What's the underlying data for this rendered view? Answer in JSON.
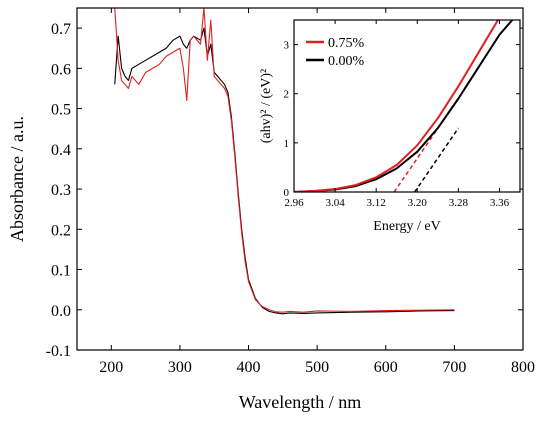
{
  "chart_data": [
    {
      "type": "line",
      "xlabel": "Wavelength / nm",
      "ylabel": "Absorbance / a.u.",
      "xlim": [
        150,
        800
      ],
      "ylim": [
        -0.1,
        0.75
      ],
      "xticks": [
        200,
        300,
        400,
        500,
        600,
        700,
        800
      ],
      "yticks": [
        -0.1,
        0.0,
        0.1,
        0.2,
        0.3,
        0.4,
        0.5,
        0.6,
        0.7
      ],
      "xtick_labels": [
        "200",
        "300",
        "400",
        "500",
        "600",
        "700",
        "800"
      ],
      "ytick_labels": [
        "-0.1",
        "0.0",
        "0.1",
        "0.2",
        "0.3",
        "0.4",
        "0.5",
        "0.6",
        "0.7"
      ],
      "grid": false,
      "series": [
        {
          "name": "0.75%",
          "color": "#e02020",
          "x": [
            205,
            210,
            215,
            220,
            225,
            230,
            240,
            250,
            260,
            270,
            280,
            290,
            300,
            305,
            310,
            315,
            320,
            330,
            335,
            340,
            345,
            350,
            355,
            360,
            365,
            370,
            375,
            380,
            385,
            390,
            395,
            400,
            410,
            420,
            430,
            440,
            450,
            460,
            480,
            500,
            550,
            600,
            650,
            700
          ],
          "y": [
            0.75,
            0.62,
            0.57,
            0.56,
            0.55,
            0.58,
            0.56,
            0.59,
            0.6,
            0.61,
            0.63,
            0.64,
            0.65,
            0.6,
            0.52,
            0.67,
            0.68,
            0.66,
            0.75,
            0.62,
            0.72,
            0.58,
            0.57,
            0.56,
            0.55,
            0.53,
            0.47,
            0.38,
            0.28,
            0.19,
            0.12,
            0.07,
            0.025,
            0.008,
            0.0,
            -0.005,
            -0.006,
            -0.004,
            -0.006,
            -0.003,
            -0.004,
            -0.002,
            -0.001,
            0.0
          ]
        },
        {
          "name": "0.00%",
          "color": "#000000",
          "x": [
            205,
            210,
            215,
            220,
            225,
            230,
            240,
            250,
            260,
            270,
            280,
            290,
            300,
            305,
            310,
            315,
            320,
            330,
            335,
            340,
            345,
            350,
            355,
            360,
            365,
            370,
            375,
            380,
            385,
            390,
            395,
            400,
            410,
            420,
            430,
            440,
            450,
            460,
            480,
            500,
            550,
            600,
            650,
            700
          ],
          "y": [
            0.56,
            0.68,
            0.6,
            0.58,
            0.57,
            0.6,
            0.61,
            0.62,
            0.63,
            0.64,
            0.65,
            0.67,
            0.68,
            0.66,
            0.65,
            0.67,
            0.68,
            0.67,
            0.7,
            0.63,
            0.66,
            0.59,
            0.58,
            0.57,
            0.56,
            0.54,
            0.48,
            0.39,
            0.29,
            0.2,
            0.13,
            0.075,
            0.028,
            0.006,
            -0.004,
            -0.008,
            -0.01,
            -0.008,
            -0.009,
            -0.008,
            -0.006,
            -0.005,
            -0.003,
            -0.002
          ]
        }
      ]
    },
    {
      "type": "line",
      "inset": true,
      "xlabel": "Energy / eV",
      "ylabel": "(ahv)² / (eV)²",
      "xlim": [
        2.96,
        3.4
      ],
      "ylim": [
        0,
        3.5
      ],
      "xticks": [
        2.96,
        3.04,
        3.12,
        3.2,
        3.28,
        3.36
      ],
      "yticks": [
        0,
        1,
        2,
        3
      ],
      "xtick_labels": [
        "2.96",
        "3.04",
        "3.12",
        "3.20",
        "3.28",
        "3.36"
      ],
      "ytick_labels": [
        "0",
        "1",
        "2",
        "3"
      ],
      "legend_position": "top-left",
      "series": [
        {
          "name": "0.75%",
          "color": "#e02020",
          "x": [
            2.96,
            3.0,
            3.04,
            3.08,
            3.12,
            3.16,
            3.2,
            3.24,
            3.28,
            3.32,
            3.36
          ],
          "y": [
            0.0,
            0.02,
            0.06,
            0.14,
            0.3,
            0.55,
            0.95,
            1.5,
            2.15,
            2.85,
            3.55
          ]
        },
        {
          "name": "0.00%",
          "color": "#000000",
          "x": [
            2.96,
            3.0,
            3.04,
            3.08,
            3.12,
            3.16,
            3.2,
            3.24,
            3.28,
            3.32,
            3.36,
            3.385
          ],
          "y": [
            0.0,
            0.02,
            0.05,
            0.12,
            0.26,
            0.48,
            0.82,
            1.3,
            1.9,
            2.55,
            3.2,
            3.5
          ]
        }
      ],
      "tangents": [
        {
          "color": "#e02020",
          "x": [
            3.155,
            3.28
          ],
          "y": [
            0.0,
            1.9
          ]
        },
        {
          "color": "#000000",
          "x": [
            3.195,
            3.28
          ],
          "y": [
            0.0,
            1.3
          ]
        }
      ]
    }
  ]
}
